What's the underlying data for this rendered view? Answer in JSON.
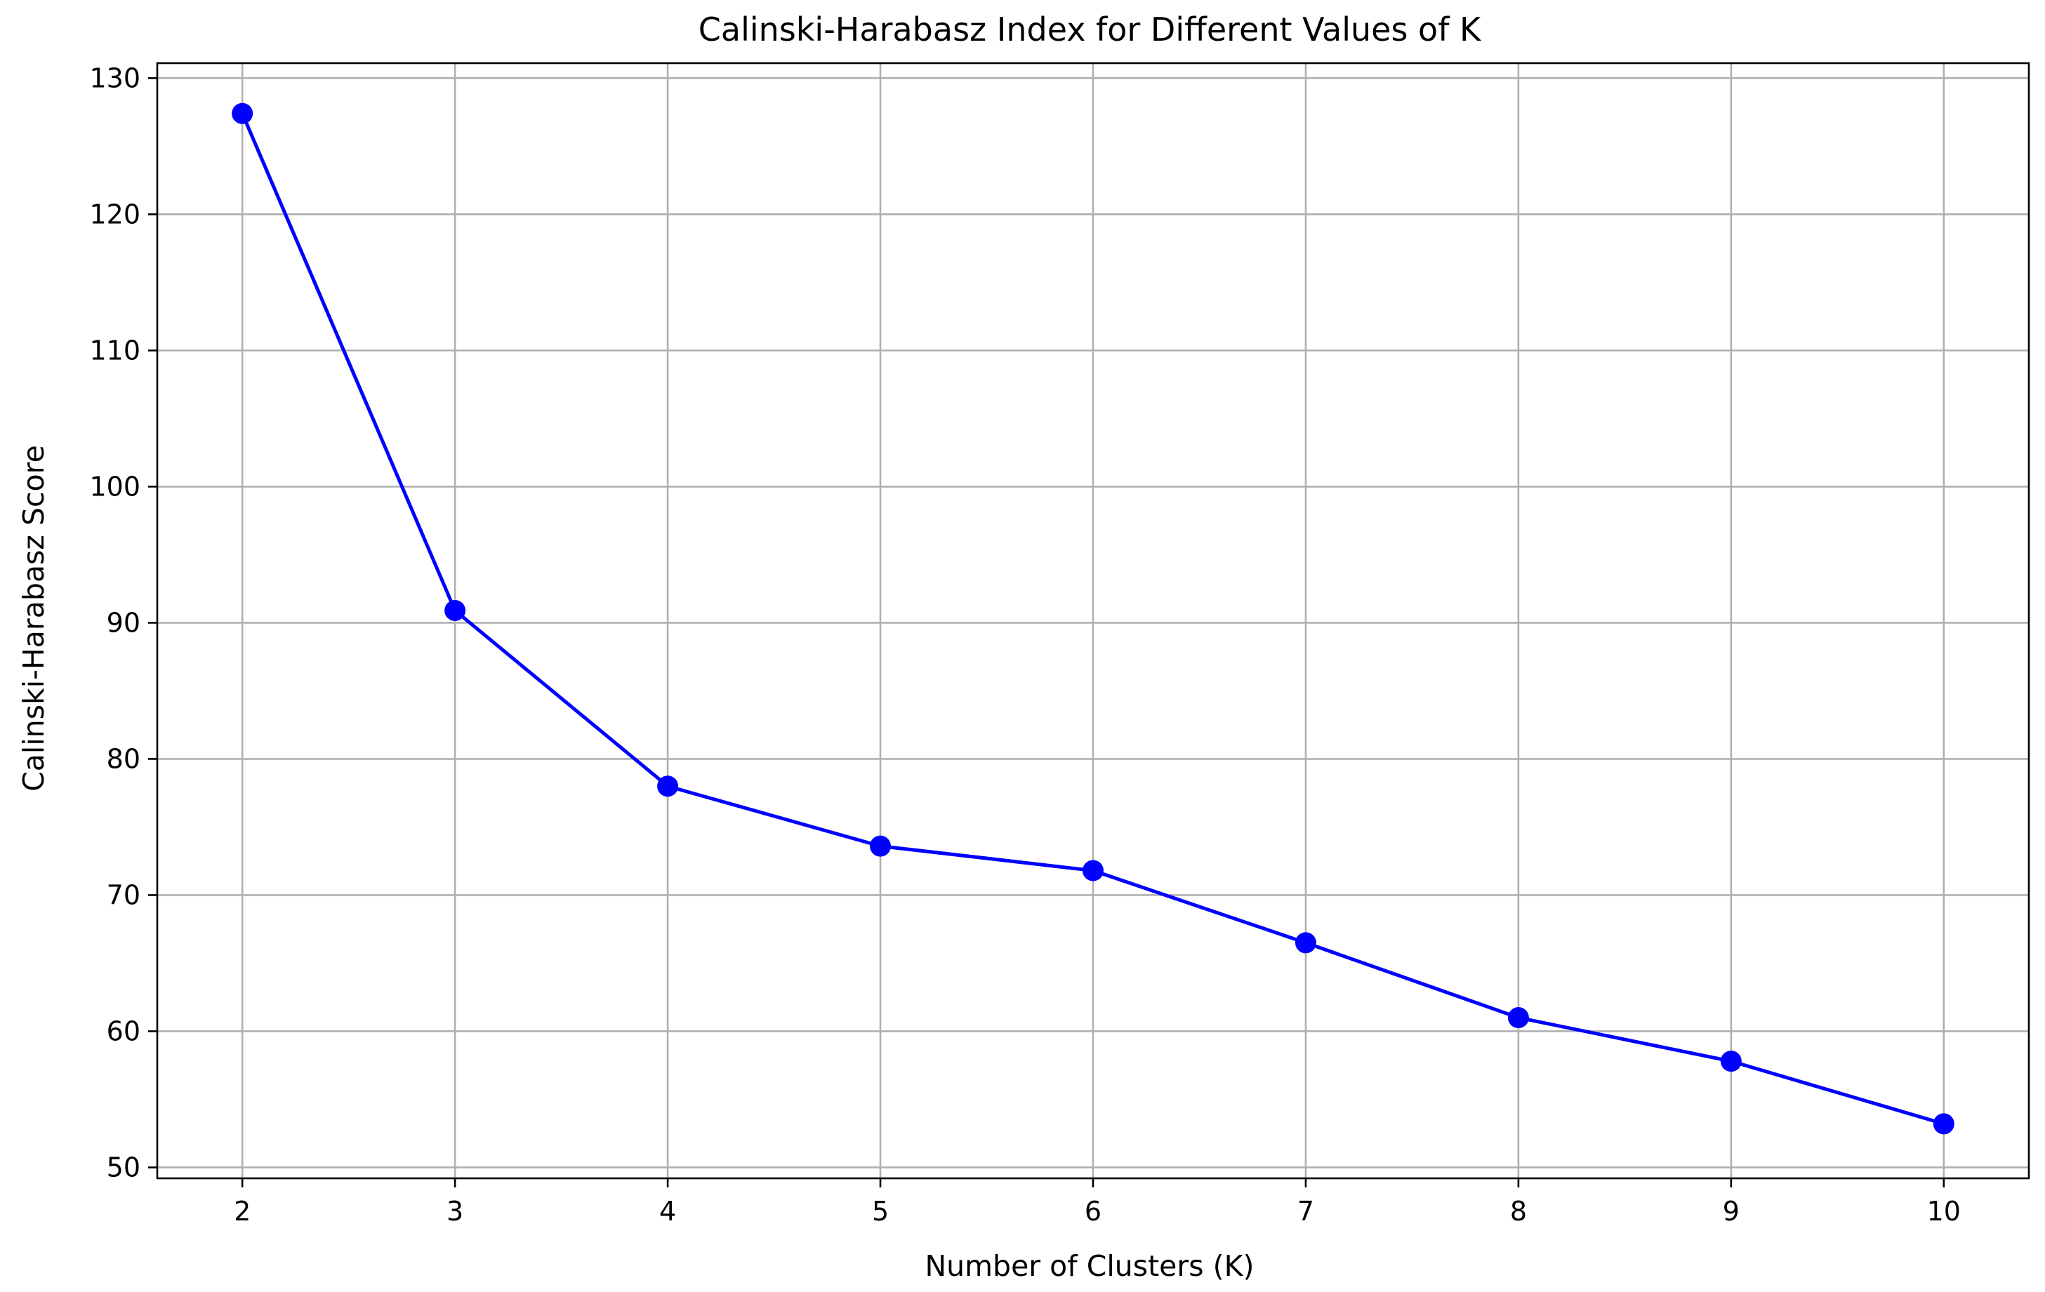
{
  "chart_data": {
    "type": "line",
    "title": "Calinski-Harabasz Index for Different Values of K",
    "xlabel": "Number of Clusters (K)",
    "ylabel": "Calinski-Harabasz Score",
    "x": [
      2,
      3,
      4,
      5,
      6,
      7,
      8,
      9,
      10
    ],
    "series": [
      {
        "values": [
          127.4,
          90.9,
          78.0,
          73.6,
          71.8,
          66.5,
          61.0,
          57.8,
          53.2
        ],
        "color": "#0000ff",
        "marker": "circle"
      }
    ],
    "xticks": [
      "2",
      "3",
      "4",
      "5",
      "6",
      "7",
      "8",
      "9",
      "10"
    ],
    "yticks": [
      "50",
      "60",
      "70",
      "80",
      "90",
      "100",
      "110",
      "120",
      "130"
    ],
    "xlim": [
      1.6,
      10.4
    ],
    "ylim": [
      49.2,
      131.1
    ],
    "grid": true,
    "legend": "none"
  }
}
